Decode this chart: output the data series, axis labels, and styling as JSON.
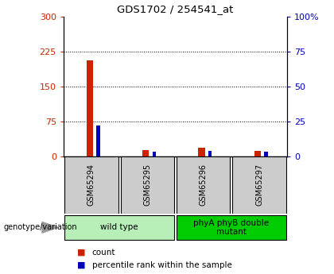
{
  "title": "GDS1702 / 254541_at",
  "samples": [
    "GSM65294",
    "GSM65295",
    "GSM65296",
    "GSM65297"
  ],
  "count_values": [
    205,
    13,
    18,
    12
  ],
  "percentile_values": [
    22,
    3,
    4,
    3
  ],
  "left_ylim": [
    0,
    300
  ],
  "right_ylim": [
    0,
    100
  ],
  "left_yticks": [
    0,
    75,
    150,
    225,
    300
  ],
  "right_yticks": [
    0,
    25,
    50,
    75,
    100
  ],
  "right_yticklabels": [
    "0",
    "25",
    "50",
    "75",
    "100%"
  ],
  "groups": [
    {
      "label": "wild type",
      "samples": [
        0,
        1
      ],
      "color": "#b8eeb8"
    },
    {
      "label": "phyA phyB double\nmutant",
      "samples": [
        2,
        3
      ],
      "color": "#00cc00"
    }
  ],
  "count_color": "#cc2200",
  "percentile_color": "#0000bb",
  "left_tick_color": "#cc2200",
  "right_tick_color": "#0000bb",
  "grid_color": "black",
  "legend_count_label": "count",
  "legend_percentile_label": "percentile rank within the sample",
  "genotype_label": "genotype/variation",
  "sample_box_color": "#cccccc"
}
